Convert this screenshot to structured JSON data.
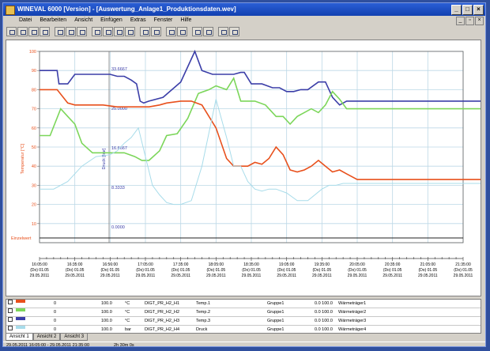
{
  "window": {
    "title": "WINEVAL 6000 [Version] - [Auswertung_Anlage1_Produktionsdaten.wev]"
  },
  "menu": [
    "Datei",
    "Bearbeiten",
    "Ansicht",
    "Einfügen",
    "Extras",
    "Fenster",
    "Hilfe"
  ],
  "colors": {
    "blue": "#3b3ea8",
    "green": "#7cd65a",
    "red": "#e8501c",
    "cyan": "#a8dcea",
    "grid": "#bcd8e6",
    "black": "#000000"
  },
  "chart_data": {
    "type": "line",
    "x_labels": [
      [
        "16:05:00",
        "(Do) 01.05",
        "29.05.2011"
      ],
      [
        "16:35:00",
        "(Do) 01.05",
        "29.05.2011"
      ],
      [
        "16:56:00",
        "(Do) 01.05",
        "29.05.2011"
      ],
      [
        "17:05:00",
        "(Do) 01.05",
        "29.05.2011"
      ],
      [
        "17:35:00",
        "(Do) 01.05",
        "29.05.2011"
      ],
      [
        "18:05:00",
        "(Do) 01.05",
        "29.05.2011"
      ],
      [
        "18:35:00",
        "(Do) 01.05",
        "29.05.2011"
      ],
      [
        "19:05:00",
        "(Do) 01.05",
        "29.05.2011"
      ],
      [
        "19:35:00",
        "(Do) 01.05",
        "29.05.2011"
      ],
      [
        "20:05:00",
        "(Do) 01.05",
        "29.05.2011"
      ],
      [
        "20:35:00",
        "(Do) 01.05",
        "29.05.2011"
      ],
      [
        "21:05:00",
        "(Do) 01.05",
        "29.05.2011"
      ],
      [
        "21:35:00",
        "(Do) 01.05",
        "29.05.2011"
      ]
    ],
    "ylim": [
      0,
      100
    ],
    "y_ticks_left": [
      "100",
      "90",
      "80",
      "70",
      "60",
      "50",
      "40",
      "30",
      "20",
      "10"
    ],
    "y_ticks_mid": [
      "33.6667",
      "25.0000",
      "16.6667",
      "8.3333",
      "0.0000"
    ],
    "axis_left_label": "Temperatur [°C]",
    "axis_mid_label": "Druck [bar]",
    "bottom_label": "Einzelwert",
    "series": [
      {
        "color": "#3b3ea8",
        "x": [
          0,
          0.5,
          0.55,
          0.8,
          1.0,
          1.5,
          2.0,
          2.2,
          2.4,
          2.6,
          2.75,
          2.85,
          2.95,
          3.1,
          3.5,
          4.0,
          4.4,
          4.6,
          4.9,
          5.0,
          5.3,
          5.5,
          5.7,
          5.8,
          6.0,
          6.3,
          6.6,
          6.8,
          7.0,
          7.2,
          7.4,
          7.6,
          7.9,
          8.1,
          8.3,
          8.5,
          8.7,
          9,
          10,
          11,
          12,
          13
        ],
        "y": [
          90,
          90,
          83,
          83,
          88,
          88,
          88,
          87,
          87,
          85,
          83,
          74,
          73,
          74,
          76,
          84,
          100,
          90,
          88,
          88,
          88,
          88,
          89,
          89,
          83,
          83,
          81,
          81,
          79,
          79,
          80,
          80,
          84,
          84,
          76,
          72,
          74,
          74,
          74,
          74,
          74,
          74
        ]
      },
      {
        "color": "#7cd65a",
        "x": [
          0,
          0.3,
          0.6,
          0.8,
          1.0,
          1.2,
          1.5,
          2.0,
          2.4,
          2.7,
          2.9,
          3.1,
          3.4,
          3.6,
          3.9,
          4.2,
          4.5,
          4.8,
          5.0,
          5.3,
          5.5,
          5.7,
          5.9,
          6.1,
          6.4,
          6.7,
          6.9,
          7.1,
          7.3,
          7.5,
          7.7,
          7.9,
          8.1,
          8.3,
          8.5,
          8.7,
          9,
          10,
          11,
          12,
          13
        ],
        "y": [
          56,
          56,
          70,
          66,
          62,
          52,
          47,
          47,
          47,
          45,
          43,
          43,
          48,
          56,
          57,
          65,
          78,
          80,
          82,
          80,
          86,
          74,
          74,
          74,
          72,
          66,
          66,
          62,
          66,
          68,
          70,
          68,
          72,
          79,
          75,
          70,
          70,
          70,
          70,
          70,
          70
        ]
      },
      {
        "color": "#e8501c",
        "x": [
          0,
          0.5,
          0.8,
          1.0,
          1.4,
          1.8,
          2.2,
          2.6,
          2.9,
          3.1,
          3.4,
          3.6,
          4.0,
          4.3,
          4.6,
          5.0,
          5.3,
          5.5,
          5.7,
          5.9,
          6.1,
          6.3,
          6.5,
          6.7,
          6.9,
          7.1,
          7.3,
          7.5,
          7.7,
          7.9,
          8.1,
          8.3,
          8.5,
          8.7,
          9,
          10,
          11,
          12,
          13
        ],
        "y": [
          80,
          80,
          73,
          72,
          72,
          72,
          71,
          71,
          71,
          71,
          72,
          73,
          74,
          74,
          72,
          60,
          44,
          40,
          40,
          40,
          42,
          41,
          44,
          50,
          46,
          38,
          37,
          38,
          40,
          43,
          40,
          37,
          38,
          36,
          33,
          33,
          33,
          33,
          33
        ]
      },
      {
        "color": "#a8dcea",
        "x": [
          0,
          0.4,
          0.8,
          1.2,
          1.6,
          2.0,
          2.2,
          2.4,
          2.6,
          2.8,
          3.0,
          3.2,
          3.4,
          3.6,
          3.8,
          4.0,
          4.3,
          4.6,
          5.0,
          5.3,
          5.5,
          5.7,
          5.9,
          6.1,
          6.3,
          6.5,
          6.7,
          7.0,
          7.3,
          7.6,
          8.0,
          8.2,
          8.4,
          8.6,
          9,
          9.5,
          10,
          11,
          12,
          13
        ],
        "y": [
          28,
          28,
          32,
          40,
          45,
          46,
          48,
          52,
          55,
          60,
          45,
          30,
          25,
          21,
          20,
          20,
          22,
          40,
          75,
          55,
          40,
          40,
          32,
          28,
          27,
          28,
          28,
          26,
          22,
          22,
          28,
          30,
          30,
          31,
          31,
          31,
          31,
          31,
          31,
          31
        ]
      }
    ]
  },
  "table": {
    "rows": [
      {
        "color": "#e8501c",
        "min": "0",
        "max": "100.0",
        "unit": "°C",
        "name": "DIGT_PR_H2_H1",
        "desc": "Temp.1",
        "group": "Gruppe1",
        "range": "0.0 100.0",
        "comment": "Wärmeträger1"
      },
      {
        "color": "#7cd65a",
        "min": "0",
        "max": "100.0",
        "unit": "°C",
        "name": "DIGT_PR_H2_H2",
        "desc": "Temp.2",
        "group": "Gruppe1",
        "range": "0.0 100.0",
        "comment": "Wärmeträger2"
      },
      {
        "color": "#3b3ea8",
        "min": "0",
        "max": "100.0",
        "unit": "°C",
        "name": "DIGT_PR_H2_H3",
        "desc": "Temp.3",
        "group": "Gruppe1",
        "range": "0.0 100.0",
        "comment": "Wärmeträger3"
      },
      {
        "color": "#a8dcea",
        "min": "0",
        "max": "100.0",
        "unit": "bar",
        "name": "DIGT_PR_H2_H4",
        "desc": "Druck",
        "group": "Gruppe1",
        "range": "0.0 100.0",
        "comment": "Wärmeträger4"
      }
    ]
  },
  "tabs": [
    "Ansicht 1",
    "Ansicht 2",
    "Ansicht 3"
  ],
  "status": {
    "left": "29.05.2011 16:05:00 - 29.05.2011 21:35:00",
    "mid": "2h 30m 0s"
  }
}
